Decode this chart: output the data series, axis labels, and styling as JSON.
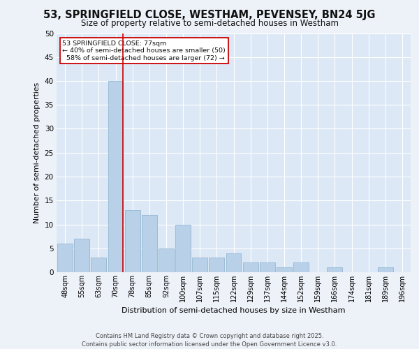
{
  "title1": "53, SPRINGFIELD CLOSE, WESTHAM, PEVENSEY, BN24 5JG",
  "title2": "Size of property relative to semi-detached houses in Westham",
  "xlabel": "Distribution of semi-detached houses by size in Westham",
  "ylabel": "Number of semi-detached properties",
  "categories": [
    "48sqm",
    "55sqm",
    "63sqm",
    "70sqm",
    "78sqm",
    "85sqm",
    "92sqm",
    "100sqm",
    "107sqm",
    "115sqm",
    "122sqm",
    "129sqm",
    "137sqm",
    "144sqm",
    "152sqm",
    "159sqm",
    "166sqm",
    "174sqm",
    "181sqm",
    "189sqm",
    "196sqm"
  ],
  "values": [
    6,
    7,
    3,
    40,
    13,
    12,
    5,
    10,
    3,
    3,
    4,
    2,
    2,
    1,
    2,
    0,
    1,
    0,
    0,
    1,
    0
  ],
  "bar_color": "#b8d0e8",
  "bar_edge_color": "#8ab0cc",
  "subject_bar_index": 3,
  "subject_line_color": "#cc0000",
  "subject_label": "53 SPRINGFIELD CLOSE: 77sqm",
  "subject_smaller_pct": "40%",
  "subject_smaller_n": 50,
  "subject_larger_pct": "58%",
  "subject_larger_n": 72,
  "annotation_box_color": "#cc0000",
  "ylim": [
    0,
    50
  ],
  "yticks": [
    0,
    5,
    10,
    15,
    20,
    25,
    30,
    35,
    40,
    45,
    50
  ],
  "bg_color": "#dce8f5",
  "grid_color": "#ffffff",
  "fig_bg_color": "#edf2f8",
  "footer_line1": "Contains HM Land Registry data © Crown copyright and database right 2025.",
  "footer_line2": "Contains public sector information licensed under the Open Government Licence v3.0."
}
